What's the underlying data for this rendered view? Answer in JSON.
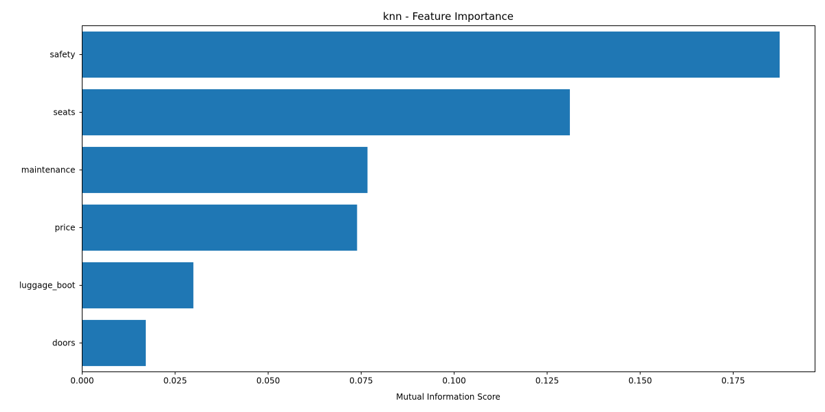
{
  "chart_data": {
    "type": "bar",
    "orientation": "horizontal",
    "title": "knn - Feature Importance",
    "xlabel": "Mutual Information Score",
    "ylabel": "",
    "categories": [
      "safety",
      "seats",
      "maintenance",
      "price",
      "luggage_boot",
      "doors"
    ],
    "values": [
      0.1875,
      0.1311,
      0.0767,
      0.0739,
      0.0299,
      0.0171
    ],
    "xlim": [
      0,
      0.197
    ],
    "xticks": [
      0.0,
      0.025,
      0.05,
      0.075,
      0.1,
      0.125,
      0.15,
      0.175
    ],
    "xtick_labels": [
      "0.000",
      "0.025",
      "0.050",
      "0.075",
      "0.100",
      "0.125",
      "0.150",
      "0.175"
    ],
    "bar_color": "#1f77b4",
    "grid": false,
    "legend": "none"
  }
}
